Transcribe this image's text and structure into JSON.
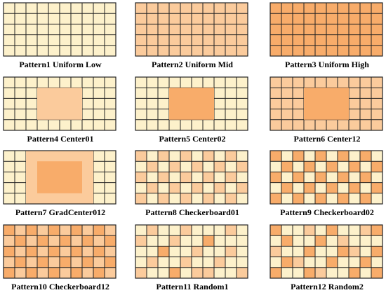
{
  "colors": {
    "low": "#FDF1CB",
    "mid": "#FBCB9C",
    "high": "#F8AC6A",
    "line": "#222222"
  },
  "grid": {
    "cols": 10,
    "rows": 5
  },
  "patterns": [
    {
      "label": "Pattern1 Uniform Low",
      "kind": "uniform",
      "level": 0
    },
    {
      "label": "Pattern2 Uniform Mid",
      "kind": "uniform",
      "level": 1
    },
    {
      "label": "Pattern3 Uniform High",
      "kind": "uniform",
      "level": 2
    },
    {
      "label": "Pattern4 Center01",
      "kind": "center",
      "outer": 0,
      "inner": 1
    },
    {
      "label": "Pattern5 Center02",
      "kind": "center",
      "outer": 0,
      "inner": 2
    },
    {
      "label": "Pattern6 Center12",
      "kind": "center",
      "outer": 1,
      "inner": 2
    },
    {
      "label": "Pattern7 GradCenter012",
      "kind": "gradcenter",
      "outer": 0,
      "ring": 1,
      "inner": 2
    },
    {
      "label": "Pattern8 Checkerboard01",
      "kind": "checker",
      "a": 1,
      "b": 0
    },
    {
      "label": "Pattern9 Checkerboard02",
      "kind": "checker",
      "a": 2,
      "b": 0
    },
    {
      "label": "Pattern10 Checkerboard12",
      "kind": "checker",
      "a": 2,
      "b": 1
    },
    {
      "label": "Pattern11 Random1",
      "kind": "random",
      "cells": [
        [
          0,
          1,
          0,
          0,
          1,
          0,
          0,
          0,
          1,
          0
        ],
        [
          1,
          0,
          0,
          1,
          0,
          0,
          2,
          0,
          0,
          0
        ],
        [
          0,
          0,
          2,
          0,
          0,
          1,
          0,
          0,
          1,
          0
        ],
        [
          0,
          1,
          0,
          0,
          1,
          0,
          0,
          1,
          0,
          0
        ],
        [
          1,
          0,
          0,
          2,
          0,
          1,
          1,
          0,
          0,
          1
        ]
      ]
    },
    {
      "label": "Pattern12 Random2",
      "kind": "random",
      "cells": [
        [
          2,
          0,
          0,
          1,
          0,
          2,
          0,
          0,
          1,
          2
        ],
        [
          0,
          2,
          0,
          0,
          2,
          0,
          1,
          0,
          0,
          0
        ],
        [
          1,
          0,
          0,
          2,
          0,
          0,
          2,
          1,
          0,
          2
        ],
        [
          0,
          2,
          1,
          0,
          0,
          2,
          0,
          0,
          2,
          0
        ],
        [
          2,
          0,
          0,
          2,
          1,
          0,
          0,
          2,
          0,
          2
        ]
      ]
    }
  ]
}
